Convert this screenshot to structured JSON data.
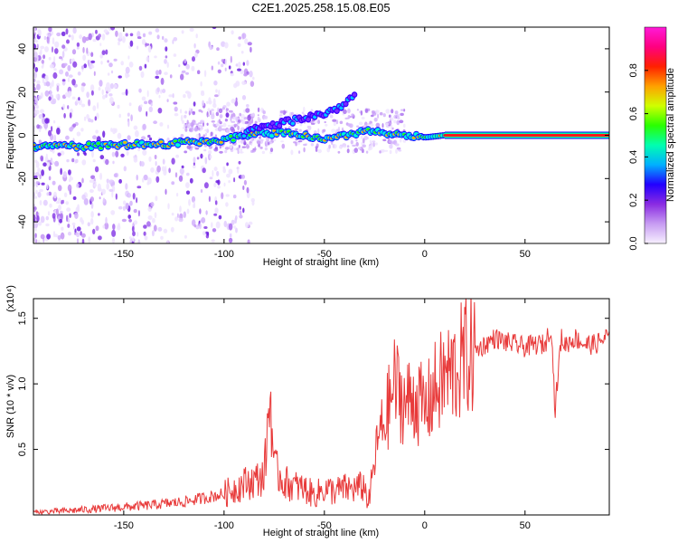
{
  "title": "C2E1.2025.258.15.08.E05",
  "colors": {
    "snr_line": "#e83a3a",
    "frame": "#000000",
    "ridge": "#ff1a1a",
    "halo": "#00c8ff"
  },
  "chart_data": [
    {
      "type": "heatmap",
      "name": "spectrogram",
      "xlabel": "Height of straight line (km)",
      "ylabel": "Frequency (Hz)",
      "xlim": [
        -195,
        92
      ],
      "ylim": [
        -50,
        50
      ],
      "x_ticks": [
        -150,
        -100,
        -50,
        0,
        50
      ],
      "x_tick_labels": [
        "-150",
        "-100",
        "-50",
        "0",
        "50"
      ],
      "y_ticks": [
        -40,
        -20,
        0,
        20,
        40
      ],
      "y_tick_labels": [
        "-40",
        "-20",
        "0",
        "20",
        "40"
      ],
      "ridge_line": {
        "x": [
          -195,
          -170,
          -150,
          -130,
          -110,
          -100,
          -90,
          -80,
          -70,
          -60,
          -50,
          -40,
          -30,
          -20,
          -10,
          0,
          10,
          30,
          50,
          70,
          92
        ],
        "y": [
          -5,
          -5,
          -4.5,
          -4,
          -3,
          -2,
          0,
          1,
          1,
          0,
          -2,
          0,
          2,
          1,
          0,
          -1,
          0,
          0,
          0,
          0,
          0
        ]
      },
      "secondary_branch": {
        "x": [
          -90,
          -80,
          -70,
          -60,
          -50,
          -45,
          -40,
          -37,
          -35
        ],
        "y": [
          1,
          4,
          6,
          8,
          10,
          12,
          14,
          17,
          19
        ]
      },
      "colorbar": {
        "label": "Normalized spectral amplitude",
        "range": [
          0,
          1
        ],
        "ticks": [
          0.0,
          0.2,
          0.4,
          0.6,
          0.8
        ],
        "tick_labels": [
          "0.0",
          "0.2",
          "0.4",
          "0.6",
          "0.8"
        ],
        "stops": [
          "#f7f0ff",
          "#c79cf2",
          "#8a2be2",
          "#2200ff",
          "#00b0ff",
          "#00ffb0",
          "#2aff00",
          "#d0ff00",
          "#ffa000",
          "#ff2000",
          "#ff0080",
          "#ff1ad9"
        ]
      }
    },
    {
      "type": "line",
      "name": "snr",
      "xlabel": "Height of straight line (km)",
      "ylabel": "SNR (10 * v/v)",
      "y_multiplier_label": "(x10⁴)",
      "xlim": [
        -195,
        92
      ],
      "ylim": [
        0,
        1.65
      ],
      "x_ticks": [
        -150,
        -100,
        -50,
        0,
        50
      ],
      "x_tick_labels": [
        "-150",
        "-100",
        "-50",
        "0",
        "50"
      ],
      "y_ticks": [
        0.5,
        1.0,
        1.5
      ],
      "y_tick_labels": [
        "0.5",
        "1.0",
        "1.5"
      ],
      "series": [
        {
          "name": "SNR",
          "x": [
            -195,
            -180,
            -160,
            -140,
            -120,
            -110,
            -100,
            -95,
            -90,
            -85,
            -80,
            -77,
            -75,
            -72,
            -70,
            -65,
            -60,
            -55,
            -50,
            -45,
            -40,
            -35,
            -30,
            -28,
            -25,
            -23,
            -20,
            -15,
            -10,
            -5,
            0,
            5,
            10,
            15,
            20,
            25,
            30,
            35,
            40,
            45,
            50,
            55,
            60,
            63,
            65,
            68,
            70,
            75,
            80,
            85,
            90,
            92
          ],
          "y": [
            0.02,
            0.03,
            0.05,
            0.07,
            0.1,
            0.13,
            0.16,
            0.2,
            0.24,
            0.26,
            0.3,
            0.93,
            0.35,
            0.3,
            0.25,
            0.22,
            0.2,
            0.15,
            0.2,
            0.18,
            0.2,
            0.2,
            0.22,
            0.08,
            0.4,
            0.6,
            0.7,
            1.0,
            0.85,
            0.9,
            0.8,
            0.95,
            1.05,
            1.1,
            1.2,
            1.25,
            1.3,
            1.35,
            1.32,
            1.3,
            1.28,
            1.3,
            1.3,
            1.45,
            0.8,
            1.35,
            1.3,
            1.35,
            1.3,
            1.3,
            1.35,
            1.38
          ]
        }
      ]
    }
  ]
}
